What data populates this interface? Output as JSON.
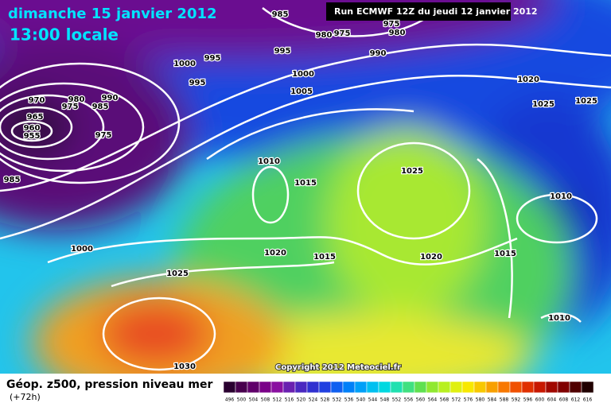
{
  "header": {
    "title": "dimanche 15 janvier 2012",
    "subtitle": "13:00 locale",
    "run": "Run ECMWF 12Z du jeudi 12 janvier 2012"
  },
  "isobar_labels": [
    "985",
    "975",
    "980",
    "975",
    "980",
    "990",
    "995",
    "1000",
    "995",
    "995",
    "1000",
    "1005",
    "970",
    "975",
    "980",
    "985",
    "990",
    "965",
    "960",
    "955",
    "975",
    "985",
    "1010",
    "1015",
    "1025",
    "1020",
    "1025",
    "1025",
    "1010",
    "1000",
    "1020",
    "1015",
    "1020",
    "1015",
    "1025",
    "1010",
    "1030"
  ],
  "copyright": "Copyright 2012 Meteociel.fr",
  "legend": {
    "title": "Géop. z500, pression niveau mer",
    "lead_time": "(+72h)",
    "colorbar": [
      "496",
      "500",
      "504",
      "508",
      "512",
      "516",
      "520",
      "524",
      "528",
      "532",
      "536",
      "540",
      "544",
      "548",
      "552",
      "556",
      "560",
      "564",
      "568",
      "572",
      "576",
      "580",
      "584",
      "588",
      "592",
      "596",
      "600",
      "604",
      "608",
      "612",
      "616"
    ]
  }
}
